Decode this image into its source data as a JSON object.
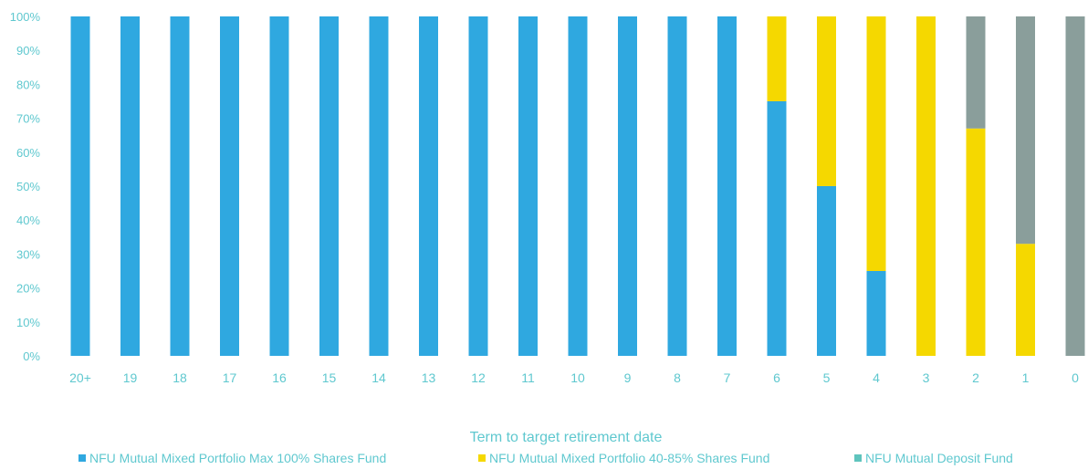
{
  "chart_data": {
    "type": "bar",
    "stacked": true,
    "xlabel": "Term to target retirement date",
    "ylabel": "",
    "ylim": [
      0,
      100
    ],
    "y_ticks": [
      "0%",
      "10%",
      "20%",
      "30%",
      "40%",
      "50%",
      "60%",
      "70%",
      "80%",
      "90%",
      "100%"
    ],
    "grid": false,
    "legend_position": "bottom",
    "categories": [
      "20+",
      "19",
      "18",
      "17",
      "16",
      "15",
      "14",
      "13",
      "12",
      "11",
      "10",
      "9",
      "8",
      "7",
      "6",
      "5",
      "4",
      "3",
      "2",
      "1",
      "0"
    ],
    "series": [
      {
        "name": "NFU Mutual Mixed Portfolio Max 100% Shares Fund",
        "color": "#2fa8e0",
        "values": [
          100,
          100,
          100,
          100,
          100,
          100,
          100,
          100,
          100,
          100,
          100,
          100,
          100,
          100,
          75,
          50,
          25,
          0,
          0,
          0,
          0
        ]
      },
      {
        "name": "NFU Mutual Mixed Portfolio 40-85% Shares Fund",
        "color": "#f5d800",
        "values": [
          0,
          0,
          0,
          0,
          0,
          0,
          0,
          0,
          0,
          0,
          0,
          0,
          0,
          0,
          25,
          50,
          75,
          100,
          67,
          33,
          0
        ]
      },
      {
        "name": "NFU Mutual Deposit Fund",
        "color": "#8a9e9b",
        "legend_color": "#5fc4bd",
        "values": [
          0,
          0,
          0,
          0,
          0,
          0,
          0,
          0,
          0,
          0,
          0,
          0,
          0,
          0,
          0,
          0,
          0,
          0,
          33,
          67,
          100
        ]
      }
    ]
  }
}
